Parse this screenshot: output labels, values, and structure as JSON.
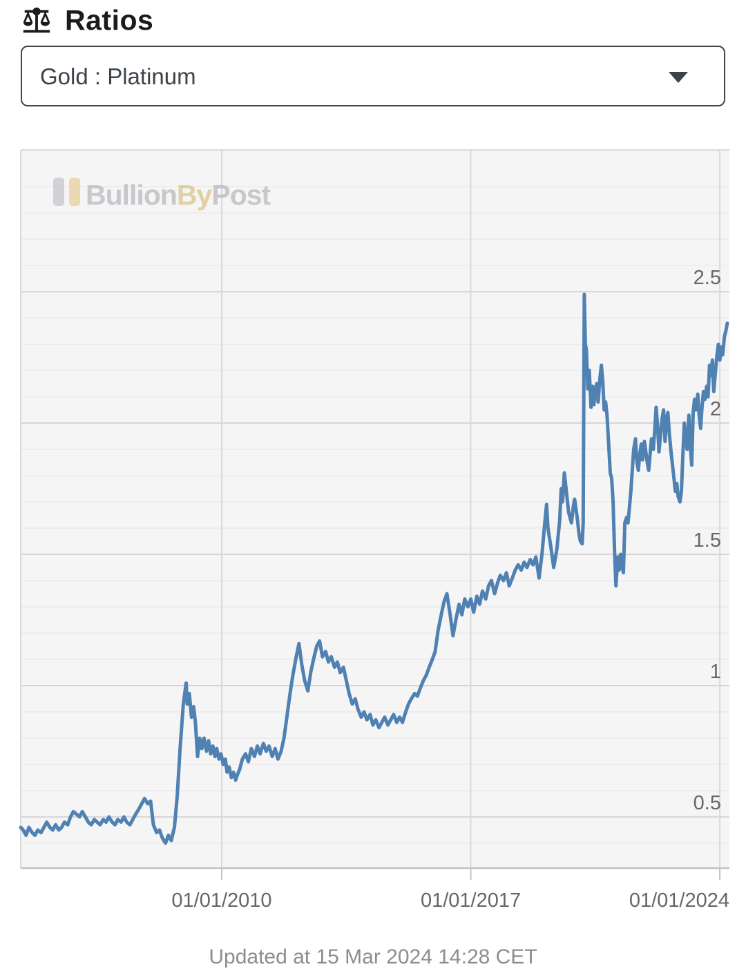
{
  "header": {
    "title": "Ratios",
    "icon": "balance-scale"
  },
  "ratio_selector": {
    "selected_option": "Gold : Platinum",
    "caret_icon": "dropdown-caret"
  },
  "watermark": {
    "parts": [
      "Bullion",
      "By",
      "Post"
    ],
    "gray_color": "#aeaeb3",
    "gold_color": "#d8b96f",
    "bar_silver": "#c6c6cb",
    "bar_gold": "#e9d3a0"
  },
  "footer": {
    "updated_text": "Updated at 15 Mar 2024 14:28 CET"
  },
  "chart_data": {
    "type": "line",
    "series_name": "Gold : Platinum ratio",
    "line_color": "#4f81b2",
    "plot_bg": "#f5f5f6",
    "minor_grid_color": "#eaeaec",
    "major_grid_color": "#d5d5d8",
    "border_color": "#d9d9db",
    "axis_color": "#c3c3c6",
    "label_color": "#666666",
    "xlim": [
      2004.35,
      2024.27
    ],
    "ylim": [
      0.305,
      3.04
    ],
    "minor_step": 0.1,
    "x_ticks": [
      {
        "year": 2010,
        "label": "01/01/2010"
      },
      {
        "year": 2017,
        "label": "01/01/2017"
      },
      {
        "year": 2024,
        "label": "01/01/2024"
      }
    ],
    "y_ticks": [
      {
        "value": 0.5,
        "label": "0.5"
      },
      {
        "value": 1.0,
        "label": "1"
      },
      {
        "value": 1.5,
        "label": "1.5"
      },
      {
        "value": 2.0,
        "label": "2"
      },
      {
        "value": 2.5,
        "label": "2.5"
      }
    ],
    "points": [
      [
        2004.35,
        0.46
      ],
      [
        2004.42,
        0.45
      ],
      [
        2004.5,
        0.43
      ],
      [
        2004.58,
        0.46
      ],
      [
        2004.67,
        0.44
      ],
      [
        2004.75,
        0.43
      ],
      [
        2004.83,
        0.45
      ],
      [
        2004.92,
        0.44
      ],
      [
        2005.0,
        0.46
      ],
      [
        2005.08,
        0.48
      ],
      [
        2005.17,
        0.46
      ],
      [
        2005.25,
        0.45
      ],
      [
        2005.33,
        0.47
      ],
      [
        2005.42,
        0.45
      ],
      [
        2005.5,
        0.46
      ],
      [
        2005.58,
        0.48
      ],
      [
        2005.67,
        0.47
      ],
      [
        2005.75,
        0.5
      ],
      [
        2005.83,
        0.52
      ],
      [
        2005.92,
        0.51
      ],
      [
        2006.0,
        0.5
      ],
      [
        2006.08,
        0.52
      ],
      [
        2006.17,
        0.5
      ],
      [
        2006.25,
        0.48
      ],
      [
        2006.33,
        0.47
      ],
      [
        2006.42,
        0.49
      ],
      [
        2006.5,
        0.48
      ],
      [
        2006.58,
        0.47
      ],
      [
        2006.67,
        0.49
      ],
      [
        2006.75,
        0.48
      ],
      [
        2006.83,
        0.5
      ],
      [
        2006.92,
        0.48
      ],
      [
        2007.0,
        0.47
      ],
      [
        2007.08,
        0.49
      ],
      [
        2007.17,
        0.48
      ],
      [
        2007.25,
        0.5
      ],
      [
        2007.33,
        0.48
      ],
      [
        2007.42,
        0.47
      ],
      [
        2007.5,
        0.49
      ],
      [
        2007.58,
        0.51
      ],
      [
        2007.67,
        0.53
      ],
      [
        2007.75,
        0.55
      ],
      [
        2007.83,
        0.57
      ],
      [
        2007.92,
        0.55
      ],
      [
        2008.0,
        0.56
      ],
      [
        2008.08,
        0.47
      ],
      [
        2008.17,
        0.44
      ],
      [
        2008.25,
        0.45
      ],
      [
        2008.33,
        0.42
      ],
      [
        2008.42,
        0.4
      ],
      [
        2008.5,
        0.43
      ],
      [
        2008.58,
        0.41
      ],
      [
        2008.67,
        0.46
      ],
      [
        2008.75,
        0.58
      ],
      [
        2008.83,
        0.76
      ],
      [
        2008.92,
        0.93
      ],
      [
        2009.0,
        1.01
      ],
      [
        2009.03,
        0.93
      ],
      [
        2009.09,
        0.97
      ],
      [
        2009.15,
        0.88
      ],
      [
        2009.21,
        0.92
      ],
      [
        2009.26,
        0.86
      ],
      [
        2009.32,
        0.73
      ],
      [
        2009.38,
        0.8
      ],
      [
        2009.44,
        0.76
      ],
      [
        2009.5,
        0.8
      ],
      [
        2009.57,
        0.75
      ],
      [
        2009.63,
        0.79
      ],
      [
        2009.69,
        0.74
      ],
      [
        2009.75,
        0.77
      ],
      [
        2009.81,
        0.73
      ],
      [
        2009.86,
        0.76
      ],
      [
        2009.92,
        0.72
      ],
      [
        2009.98,
        0.74
      ],
      [
        2010.04,
        0.7
      ],
      [
        2010.1,
        0.72
      ],
      [
        2010.15,
        0.67
      ],
      [
        2010.21,
        0.69
      ],
      [
        2010.27,
        0.65
      ],
      [
        2010.33,
        0.67
      ],
      [
        2010.39,
        0.64
      ],
      [
        2010.44,
        0.66
      ],
      [
        2010.5,
        0.68
      ],
      [
        2010.58,
        0.72
      ],
      [
        2010.67,
        0.74
      ],
      [
        2010.75,
        0.71
      ],
      [
        2010.83,
        0.76
      ],
      [
        2010.92,
        0.73
      ],
      [
        2011.0,
        0.77
      ],
      [
        2011.08,
        0.74
      ],
      [
        2011.17,
        0.78
      ],
      [
        2011.25,
        0.75
      ],
      [
        2011.33,
        0.77
      ],
      [
        2011.42,
        0.73
      ],
      [
        2011.5,
        0.76
      ],
      [
        2011.58,
        0.72
      ],
      [
        2011.67,
        0.75
      ],
      [
        2011.75,
        0.8
      ],
      [
        2011.83,
        0.88
      ],
      [
        2011.92,
        0.97
      ],
      [
        2012.0,
        1.04
      ],
      [
        2012.08,
        1.1
      ],
      [
        2012.17,
        1.16
      ],
      [
        2012.25,
        1.08
      ],
      [
        2012.33,
        1.02
      ],
      [
        2012.42,
        0.98
      ],
      [
        2012.5,
        1.05
      ],
      [
        2012.58,
        1.1
      ],
      [
        2012.67,
        1.15
      ],
      [
        2012.75,
        1.17
      ],
      [
        2012.83,
        1.11
      ],
      [
        2012.92,
        1.13
      ],
      [
        2013.0,
        1.09
      ],
      [
        2013.08,
        1.11
      ],
      [
        2013.17,
        1.07
      ],
      [
        2013.25,
        1.09
      ],
      [
        2013.33,
        1.05
      ],
      [
        2013.42,
        1.07
      ],
      [
        2013.5,
        1.02
      ],
      [
        2013.58,
        0.97
      ],
      [
        2013.67,
        0.93
      ],
      [
        2013.75,
        0.95
      ],
      [
        2013.83,
        0.91
      ],
      [
        2013.92,
        0.88
      ],
      [
        2014.0,
        0.9
      ],
      [
        2014.08,
        0.87
      ],
      [
        2014.17,
        0.89
      ],
      [
        2014.25,
        0.85
      ],
      [
        2014.33,
        0.87
      ],
      [
        2014.42,
        0.84
      ],
      [
        2014.5,
        0.86
      ],
      [
        2014.58,
        0.88
      ],
      [
        2014.67,
        0.85
      ],
      [
        2014.75,
        0.87
      ],
      [
        2014.83,
        0.89
      ],
      [
        2014.92,
        0.86
      ],
      [
        2015.0,
        0.88
      ],
      [
        2015.08,
        0.86
      ],
      [
        2015.17,
        0.9
      ],
      [
        2015.25,
        0.93
      ],
      [
        2015.33,
        0.95
      ],
      [
        2015.42,
        0.97
      ],
      [
        2015.5,
        0.96
      ],
      [
        2015.58,
        0.99
      ],
      [
        2015.67,
        1.02
      ],
      [
        2015.75,
        1.04
      ],
      [
        2015.83,
        1.07
      ],
      [
        2015.92,
        1.1
      ],
      [
        2016.0,
        1.13
      ],
      [
        2016.08,
        1.21
      ],
      [
        2016.17,
        1.27
      ],
      [
        2016.25,
        1.32
      ],
      [
        2016.33,
        1.35
      ],
      [
        2016.42,
        1.27
      ],
      [
        2016.5,
        1.19
      ],
      [
        2016.58,
        1.25
      ],
      [
        2016.67,
        1.31
      ],
      [
        2016.75,
        1.27
      ],
      [
        2016.83,
        1.33
      ],
      [
        2016.92,
        1.3
      ],
      [
        2017.0,
        1.33
      ],
      [
        2017.08,
        1.28
      ],
      [
        2017.17,
        1.34
      ],
      [
        2017.25,
        1.31
      ],
      [
        2017.33,
        1.36
      ],
      [
        2017.42,
        1.33
      ],
      [
        2017.5,
        1.38
      ],
      [
        2017.58,
        1.4
      ],
      [
        2017.67,
        1.35
      ],
      [
        2017.75,
        1.39
      ],
      [
        2017.83,
        1.42
      ],
      [
        2017.92,
        1.4
      ],
      [
        2018.0,
        1.43
      ],
      [
        2018.08,
        1.38
      ],
      [
        2018.17,
        1.41
      ],
      [
        2018.25,
        1.44
      ],
      [
        2018.33,
        1.46
      ],
      [
        2018.42,
        1.44
      ],
      [
        2018.5,
        1.47
      ],
      [
        2018.58,
        1.45
      ],
      [
        2018.67,
        1.48
      ],
      [
        2018.75,
        1.46
      ],
      [
        2018.83,
        1.49
      ],
      [
        2018.92,
        1.41
      ],
      [
        2019.0,
        1.5
      ],
      [
        2019.08,
        1.62
      ],
      [
        2019.13,
        1.69
      ],
      [
        2019.17,
        1.6
      ],
      [
        2019.25,
        1.53
      ],
      [
        2019.33,
        1.45
      ],
      [
        2019.42,
        1.52
      ],
      [
        2019.5,
        1.63
      ],
      [
        2019.54,
        1.75
      ],
      [
        2019.58,
        1.7
      ],
      [
        2019.63,
        1.81
      ],
      [
        2019.67,
        1.76
      ],
      [
        2019.75,
        1.66
      ],
      [
        2019.83,
        1.62
      ],
      [
        2019.88,
        1.68
      ],
      [
        2019.92,
        1.71
      ],
      [
        2020.0,
        1.63
      ],
      [
        2020.04,
        1.58
      ],
      [
        2020.08,
        1.55
      ],
      [
        2020.13,
        1.54
      ],
      [
        2020.16,
        1.62
      ],
      [
        2020.19,
        2.49
      ],
      [
        2020.22,
        2.3
      ],
      [
        2020.25,
        2.28
      ],
      [
        2020.29,
        2.13
      ],
      [
        2020.33,
        2.2
      ],
      [
        2020.38,
        2.06
      ],
      [
        2020.42,
        2.14
      ],
      [
        2020.46,
        2.07
      ],
      [
        2020.5,
        2.13
      ],
      [
        2020.54,
        2.15
      ],
      [
        2020.58,
        2.08
      ],
      [
        2020.63,
        2.17
      ],
      [
        2020.67,
        2.22
      ],
      [
        2020.71,
        2.16
      ],
      [
        2020.75,
        2.05
      ],
      [
        2020.79,
        2.08
      ],
      [
        2020.83,
        2.03
      ],
      [
        2020.88,
        1.91
      ],
      [
        2020.92,
        1.81
      ],
      [
        2020.96,
        1.79
      ],
      [
        2021.0,
        1.7
      ],
      [
        2021.04,
        1.52
      ],
      [
        2021.08,
        1.38
      ],
      [
        2021.13,
        1.49
      ],
      [
        2021.17,
        1.44
      ],
      [
        2021.21,
        1.5
      ],
      [
        2021.25,
        1.46
      ],
      [
        2021.29,
        1.43
      ],
      [
        2021.33,
        1.62
      ],
      [
        2021.38,
        1.64
      ],
      [
        2021.42,
        1.62
      ],
      [
        2021.46,
        1.68
      ],
      [
        2021.5,
        1.74
      ],
      [
        2021.54,
        1.82
      ],
      [
        2021.58,
        1.9
      ],
      [
        2021.63,
        1.94
      ],
      [
        2021.67,
        1.85
      ],
      [
        2021.71,
        1.82
      ],
      [
        2021.75,
        1.88
      ],
      [
        2021.79,
        1.92
      ],
      [
        2021.83,
        1.86
      ],
      [
        2021.88,
        1.93
      ],
      [
        2021.92,
        1.89
      ],
      [
        2021.96,
        1.85
      ],
      [
        2022.0,
        1.82
      ],
      [
        2022.04,
        1.88
      ],
      [
        2022.08,
        1.94
      ],
      [
        2022.13,
        1.9
      ],
      [
        2022.17,
        1.97
      ],
      [
        2022.21,
        2.06
      ],
      [
        2022.25,
        1.99
      ],
      [
        2022.29,
        1.89
      ],
      [
        2022.33,
        1.95
      ],
      [
        2022.38,
        2.02
      ],
      [
        2022.42,
        2.05
      ],
      [
        2022.46,
        1.93
      ],
      [
        2022.5,
        2.01
      ],
      [
        2022.54,
        2.04
      ],
      [
        2022.58,
        1.96
      ],
      [
        2022.63,
        1.89
      ],
      [
        2022.67,
        1.84
      ],
      [
        2022.71,
        1.79
      ],
      [
        2022.75,
        1.74
      ],
      [
        2022.79,
        1.77
      ],
      [
        2022.83,
        1.72
      ],
      [
        2022.88,
        1.7
      ],
      [
        2022.92,
        1.74
      ],
      [
        2022.96,
        1.87
      ],
      [
        2023.0,
        2.0
      ],
      [
        2023.04,
        1.95
      ],
      [
        2023.08,
        1.9
      ],
      [
        2023.13,
        2.03
      ],
      [
        2023.17,
        1.92
      ],
      [
        2023.21,
        1.84
      ],
      [
        2023.25,
        2.04
      ],
      [
        2023.29,
        2.09
      ],
      [
        2023.33,
        2.05
      ],
      [
        2023.38,
        2.11
      ],
      [
        2023.42,
        2.03
      ],
      [
        2023.46,
        1.98
      ],
      [
        2023.5,
        2.06
      ],
      [
        2023.54,
        2.12
      ],
      [
        2023.58,
        2.09
      ],
      [
        2023.63,
        2.14
      ],
      [
        2023.67,
        2.1
      ],
      [
        2023.71,
        2.22
      ],
      [
        2023.75,
        2.18
      ],
      [
        2023.79,
        2.24
      ],
      [
        2023.83,
        2.12
      ],
      [
        2023.88,
        2.2
      ],
      [
        2023.92,
        2.26
      ],
      [
        2023.96,
        2.3
      ],
      [
        2024.0,
        2.24
      ],
      [
        2024.04,
        2.29
      ],
      [
        2024.08,
        2.26
      ],
      [
        2024.13,
        2.33
      ],
      [
        2024.17,
        2.35
      ],
      [
        2024.21,
        2.38
      ]
    ]
  }
}
